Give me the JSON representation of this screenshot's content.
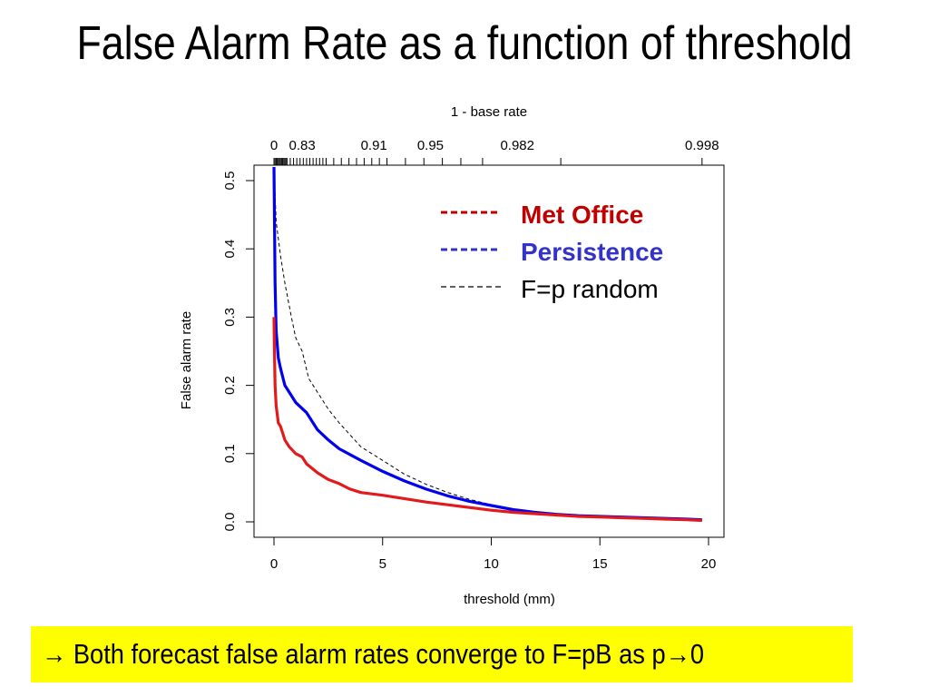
{
  "slide": {
    "title": "False Alarm Rate as a function of threshold",
    "callout": "→ Both forecast false alarm rates converge to F=pB as p→0",
    "callout_bg": "#ffff00"
  },
  "chart_data": {
    "type": "line",
    "xlabel": "threshold (mm)",
    "ylabel": "False alarm rate",
    "xlim": [
      0,
      20
    ],
    "ylim": [
      0,
      0.5
    ],
    "x_ticks": [
      "0",
      "5",
      "10",
      "15",
      "20"
    ],
    "y_ticks": [
      "0.0",
      "0.1",
      "0.2",
      "0.3",
      "0.4",
      "0.5"
    ],
    "top_axis": {
      "label": "1 - base rate",
      "tick_labels": [
        {
          "label": "0",
          "threshold": 0
        },
        {
          "label": "0.83",
          "threshold": 1.3
        },
        {
          "label": "0.91",
          "threshold": 4.6
        },
        {
          "label": "0.95",
          "threshold": 7.2
        },
        {
          "label": "0.982",
          "threshold": 11.2
        },
        {
          "label": "0.998",
          "threshold": 19.7
        }
      ]
    },
    "legend_position": "top-right",
    "series": [
      {
        "name": "Met Office",
        "color": "#e31a1c",
        "style": "solid",
        "legend_color": "#c00000",
        "points": [
          [
            0,
            0.3
          ],
          [
            0.02,
            0.25
          ],
          [
            0.05,
            0.2
          ],
          [
            0.1,
            0.17
          ],
          [
            0.2,
            0.145
          ],
          [
            0.3,
            0.14
          ],
          [
            0.5,
            0.12
          ],
          [
            0.7,
            0.11
          ],
          [
            1.0,
            0.1
          ],
          [
            1.3,
            0.095
          ],
          [
            1.5,
            0.085
          ],
          [
            2.0,
            0.072
          ],
          [
            2.5,
            0.062
          ],
          [
            3.0,
            0.056
          ],
          [
            3.5,
            0.048
          ],
          [
            4.0,
            0.043
          ],
          [
            5.0,
            0.039
          ],
          [
            6.0,
            0.034
          ],
          [
            7.0,
            0.029
          ],
          [
            8.0,
            0.025
          ],
          [
            9.0,
            0.021
          ],
          [
            10.0,
            0.017
          ],
          [
            11.0,
            0.014
          ],
          [
            12.0,
            0.012
          ],
          [
            13.0,
            0.01
          ],
          [
            14.0,
            0.008
          ],
          [
            15.0,
            0.007
          ],
          [
            16.0,
            0.006
          ],
          [
            17.0,
            0.005
          ],
          [
            18.0,
            0.004
          ],
          [
            19.0,
            0.003
          ],
          [
            19.7,
            0.002
          ]
        ]
      },
      {
        "name": "Persistence",
        "color": "#0000ee",
        "style": "solid",
        "legend_color": "#3333cc",
        "points": [
          [
            0,
            0.52
          ],
          [
            0.02,
            0.45
          ],
          [
            0.05,
            0.35
          ],
          [
            0.1,
            0.28
          ],
          [
            0.2,
            0.24
          ],
          [
            0.3,
            0.225
          ],
          [
            0.5,
            0.2
          ],
          [
            0.7,
            0.19
          ],
          [
            1.0,
            0.175
          ],
          [
            1.5,
            0.16
          ],
          [
            2.0,
            0.135
          ],
          [
            2.5,
            0.12
          ],
          [
            3.0,
            0.107
          ],
          [
            4.0,
            0.09
          ],
          [
            5.0,
            0.074
          ],
          [
            6.0,
            0.06
          ],
          [
            7.0,
            0.048
          ],
          [
            8.0,
            0.038
          ],
          [
            9.0,
            0.03
          ],
          [
            10.0,
            0.024
          ],
          [
            11.0,
            0.018
          ],
          [
            12.0,
            0.014
          ],
          [
            13.0,
            0.011
          ],
          [
            14.0,
            0.009
          ],
          [
            15.0,
            0.008
          ],
          [
            16.0,
            0.007
          ],
          [
            17.0,
            0.006
          ],
          [
            18.0,
            0.005
          ],
          [
            19.0,
            0.004
          ],
          [
            19.7,
            0.003
          ]
        ]
      },
      {
        "name": "F=p random",
        "color": "#000000",
        "style": "dashed",
        "legend_color": "#000000",
        "points": [
          [
            0,
            0.52
          ],
          [
            0.05,
            0.48
          ],
          [
            0.1,
            0.44
          ],
          [
            0.3,
            0.39
          ],
          [
            0.5,
            0.35
          ],
          [
            0.8,
            0.3
          ],
          [
            1.0,
            0.27
          ],
          [
            1.3,
            0.25
          ],
          [
            1.6,
            0.21
          ],
          [
            2.0,
            0.19
          ],
          [
            2.5,
            0.165
          ],
          [
            3.0,
            0.145
          ],
          [
            4.0,
            0.11
          ],
          [
            5.0,
            0.09
          ],
          [
            6.0,
            0.07
          ],
          [
            7.0,
            0.055
          ],
          [
            8.0,
            0.043
          ],
          [
            9.0,
            0.033
          ],
          [
            10.0,
            0.025
          ],
          [
            11.0,
            0.019
          ],
          [
            12.0,
            0.015
          ],
          [
            13.0,
            0.011
          ],
          [
            14.0,
            0.009
          ],
          [
            15.0,
            0.007
          ],
          [
            16.0,
            0.006
          ],
          [
            17.0,
            0.005
          ],
          [
            18.0,
            0.004
          ],
          [
            19.0,
            0.003
          ],
          [
            19.7,
            0.002
          ]
        ]
      }
    ]
  }
}
